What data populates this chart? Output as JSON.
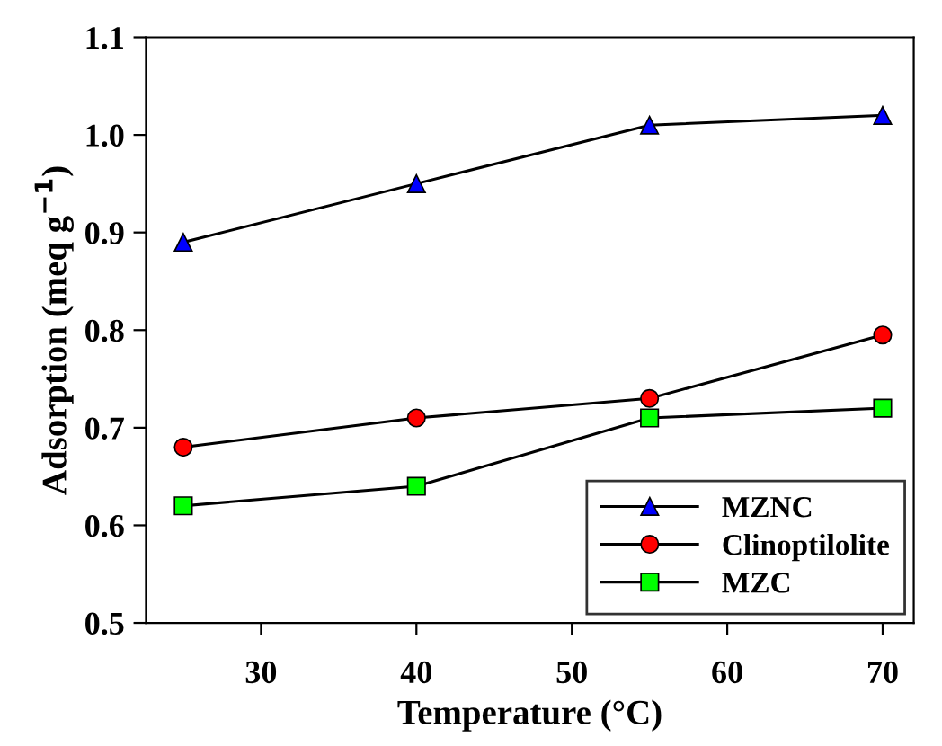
{
  "chart_data": {
    "type": "line",
    "xlabel": "Temperature (°C)",
    "ylabel": "Adsorption (meq g$^{−1}$)",
    "x": [
      25,
      40,
      55,
      70
    ],
    "series": [
      {
        "name": "MZNC",
        "color": "#0000ff",
        "marker": "triangle",
        "values": [
          0.89,
          0.95,
          1.01,
          1.02
        ]
      },
      {
        "name": "Clinoptilolite",
        "color": "#ff0000",
        "marker": "circle",
        "values": [
          0.68,
          0.71,
          0.73,
          0.795
        ]
      },
      {
        "name": "MZC",
        "color": "#00ff00",
        "marker": "square",
        "values": [
          0.62,
          0.64,
          0.71,
          0.72
        ]
      }
    ],
    "xlim": [
      22.6,
      72
    ],
    "xticks": [
      30,
      40,
      50,
      60,
      70
    ],
    "ylim": [
      0.5,
      1.1
    ],
    "yticks": [
      0.5,
      0.6,
      0.7,
      0.8,
      0.9,
      {
        "value": 1.0,
        "label": "1.0"
      },
      1.1
    ],
    "legend": "bottom right",
    "line_style": "solid",
    "grid": false
  }
}
